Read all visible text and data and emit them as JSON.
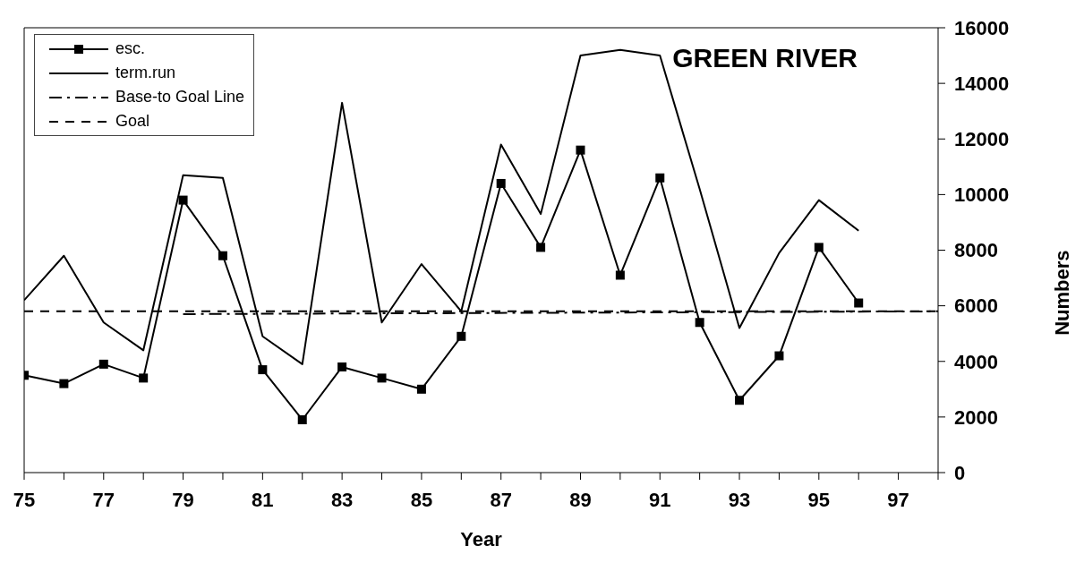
{
  "chart_data": {
    "type": "line",
    "title": "GREEN RIVER",
    "xlabel": "Year",
    "ylabel": "Numbers",
    "x": [
      75,
      76,
      77,
      78,
      79,
      80,
      81,
      82,
      83,
      84,
      85,
      86,
      87,
      88,
      89,
      90,
      91,
      92,
      93,
      94,
      95,
      96
    ],
    "xlim": [
      75,
      98
    ],
    "xticks": [
      75,
      {
        "value": 76,
        "label": null
      },
      77,
      {
        "value": 78,
        "label": null
      },
      79,
      {
        "value": 80,
        "label": null
      },
      81,
      {
        "value": 82,
        "label": null
      },
      83,
      {
        "value": 84,
        "label": null
      },
      85,
      {
        "value": 86,
        "label": null
      },
      87,
      {
        "value": 88,
        "label": null
      },
      89,
      {
        "value": 90,
        "label": null
      },
      91,
      {
        "value": 92,
        "label": null
      },
      93,
      {
        "value": 94,
        "label": null
      },
      95,
      {
        "value": 96,
        "label": null
      },
      97,
      {
        "value": 98,
        "label": null
      }
    ],
    "ylim": [
      0,
      16000
    ],
    "yticks": [
      0,
      2000,
      4000,
      6000,
      8000,
      10000,
      12000,
      14000,
      16000
    ],
    "series": [
      {
        "name": "esc.",
        "color": "#000000",
        "marker": "square",
        "line_style": "solid",
        "values": [
          3500,
          3200,
          3900,
          3400,
          9800,
          7800,
          3700,
          1900,
          3800,
          3400,
          3000,
          4900,
          10400,
          8100,
          11600,
          7100,
          10600,
          5400,
          2600,
          4200,
          8100,
          6100
        ]
      },
      {
        "name": "term.run",
        "color": "#000000",
        "marker": "none",
        "line_style": "solid",
        "values": [
          6200,
          7800,
          5400,
          4400,
          10700,
          10600,
          4900,
          3900,
          13300,
          5400,
          7500,
          5800,
          11800,
          9300,
          15000,
          15200,
          15000,
          10200,
          5200,
          7900,
          9800,
          8700
        ]
      },
      {
        "name": "Base-to Goal Line",
        "color": "#000000",
        "marker": "none",
        "line_style": "dashdot",
        "x": [
          79,
          98
        ],
        "values": [
          5700,
          5800
        ]
      },
      {
        "name": "Goal",
        "color": "#000000",
        "marker": "none",
        "line_style": "dashed",
        "x": [
          75,
          98
        ],
        "values": [
          5800,
          5800
        ]
      }
    ],
    "legend": "top left"
  }
}
